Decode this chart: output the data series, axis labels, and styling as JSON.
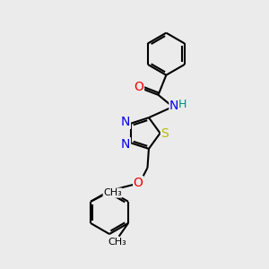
{
  "bg_color": "#ebebeb",
  "bond_color": "#000000",
  "bond_width": 1.5,
  "atom_colors": {
    "N": "#0000ee",
    "O": "#ee0000",
    "S": "#bbbb00",
    "H": "#008888",
    "C": "#000000"
  },
  "font_size": 9
}
